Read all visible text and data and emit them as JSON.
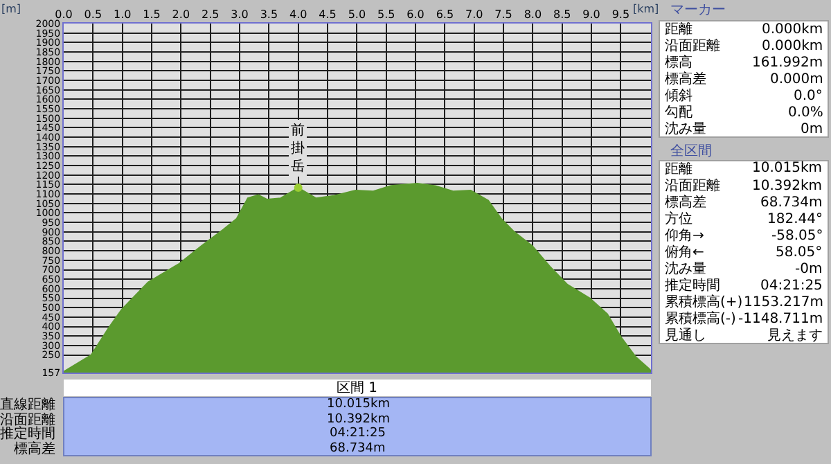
{
  "chart_data": {
    "type": "area",
    "xlabel": "[km]",
    "ylabel": "[m]",
    "x": [
      0.0,
      0.47,
      0.77,
      0.99,
      1.44,
      1.97,
      2.35,
      2.72,
      2.95,
      3.14,
      3.32,
      3.47,
      3.7,
      4.0,
      4.3,
      4.6,
      4.98,
      5.28,
      5.58,
      6.03,
      6.34,
      6.64,
      6.94,
      7.24,
      7.46,
      7.69,
      7.99,
      8.29,
      8.59,
      8.97,
      9.27,
      9.5,
      9.76,
      9.98,
      10.015
    ],
    "values": [
      162,
      250,
      394,
      490,
      634,
      732,
      826,
      912,
      970,
      1078,
      1095,
      1071,
      1078,
      1133,
      1078,
      1090,
      1119,
      1114,
      1143,
      1155,
      1143,
      1114,
      1119,
      1066,
      970,
      898,
      826,
      718,
      622,
      550,
      466,
      346,
      238,
      178,
      166
    ],
    "color": "#5b9a2e",
    "xlim": [
      0,
      10.015
    ],
    "xticks": [
      {
        "value": 0,
        "label": "0.0"
      },
      {
        "value": 0.5,
        "label": "0.5"
      },
      {
        "value": 1.0,
        "label": "1.0"
      },
      {
        "value": 1.5,
        "label": "1.5"
      },
      {
        "value": 2.0,
        "label": "2.0"
      },
      {
        "value": 2.5,
        "label": "2.5"
      },
      {
        "value": 3.0,
        "label": "3.0"
      },
      {
        "value": 3.5,
        "label": "3.5"
      },
      {
        "value": 4.0,
        "label": "4.0"
      },
      {
        "value": 4.5,
        "label": "4.5"
      },
      {
        "value": 5.0,
        "label": "5.0"
      },
      {
        "value": 5.5,
        "label": "5.5"
      },
      {
        "value": 6.0,
        "label": "6.0"
      },
      {
        "value": 6.5,
        "label": "6.5"
      },
      {
        "value": 7.0,
        "label": "7.0"
      },
      {
        "value": 7.5,
        "label": "7.5"
      },
      {
        "value": 8.0,
        "label": "8.0"
      },
      {
        "value": 8.5,
        "label": "8.5"
      },
      {
        "value": 9.0,
        "label": "9.0"
      },
      {
        "value": 9.5,
        "label": "9.5"
      }
    ],
    "ylim": [
      157,
      2000
    ],
    "yticks": [
      157,
      250,
      300,
      350,
      400,
      450,
      500,
      550,
      600,
      650,
      700,
      750,
      800,
      850,
      900,
      950,
      1000,
      1050,
      1100,
      1150,
      1200,
      1250,
      1300,
      1350,
      1400,
      1450,
      1500,
      1550,
      1600,
      1650,
      1700,
      1750,
      1800,
      1850,
      1900,
      1950,
      2000
    ],
    "grid": true,
    "annotations": [
      {
        "text": "前掛岳",
        "x": 4.0,
        "y": 1133
      },
      "マーカー",
      "距離",
      "0.000km",
      "沿面距離",
      "0.000km",
      "標高",
      "161.992m",
      "標高差",
      "0.000m",
      "傾斜",
      "0.0°",
      "勾配",
      "0.0%",
      "沈み量",
      "0m",
      "全区間",
      "距離",
      "10.015km",
      "沿面距離",
      "10.392km",
      "標高差",
      "68.734m",
      "方位",
      "182.44°",
      "仰角→",
      "-58.05°",
      "俯角←",
      "58.05°",
      "沈み量",
      "-0m",
      "推定時間",
      "04:21:25",
      "累積標高(+)",
      "1153.217m",
      "累積標高(-)",
      "-1148.711m",
      "見通し",
      "見えます",
      "区間 1",
      "直線距離",
      "10.015km",
      "沿面距離",
      "10.392km",
      "推定時間",
      "04:21:25",
      "標高差",
      "68.734m"
    ]
  }
}
